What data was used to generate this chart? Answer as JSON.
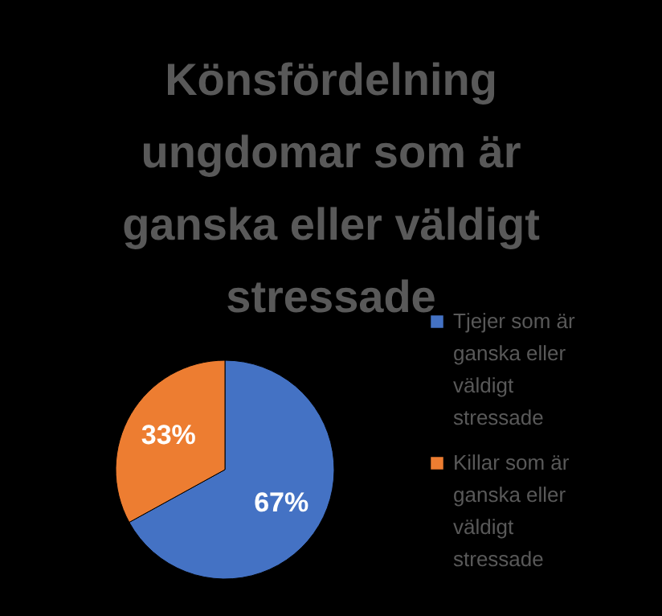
{
  "chart_data": {
    "type": "pie",
    "title": "Könsfördelning ungdomar som är ganska eller väldigt stressade",
    "categories": [
      "Tjejer som är ganska eller väldigt stressade",
      "Killar som är ganska eller väldigt stressade"
    ],
    "values": [
      67,
      33
    ],
    "value_labels": [
      "67%",
      "33%"
    ],
    "colors": [
      "#4472c4",
      "#ed7d31"
    ],
    "legend": "right"
  }
}
